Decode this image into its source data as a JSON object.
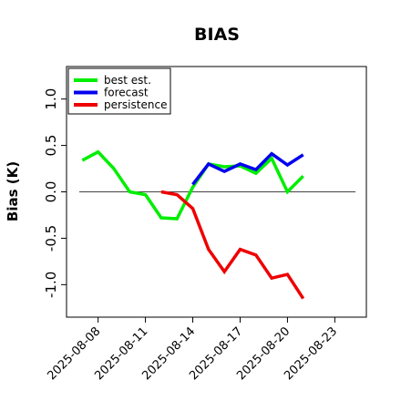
{
  "chart_data": {
    "type": "line",
    "title": "BIAS",
    "ylabel": "Bias (K)",
    "xlabel": "",
    "xlim": [
      "2025-08-06",
      "2025-08-25"
    ],
    "ylim": [
      -1.35,
      1.35
    ],
    "yticks": [
      -1.0,
      -0.5,
      0.0,
      0.5,
      1.0
    ],
    "ytick_labels": [
      "-1.0",
      "-0.5",
      "0.0",
      "0.5",
      "1.0"
    ],
    "xticks": [
      "2025-08-08",
      "2025-08-11",
      "2025-08-14",
      "2025-08-17",
      "2025-08-20",
      "2025-08-23"
    ],
    "xtick_labels": [
      "2025-08-08",
      "2025-08-11",
      "2025-08-14",
      "2025-08-17",
      "2025-08-20",
      "2025-08-23"
    ],
    "highlight_tick": "2025-08-14",
    "highlight_color": "#228B22",
    "reference_line": 0.0,
    "grid": false,
    "legend_position": "top-left",
    "series": [
      {
        "name": "best est.",
        "color": "#00ee00",
        "x": [
          "2025-08-07",
          "2025-08-08",
          "2025-08-09",
          "2025-08-10",
          "2025-08-11",
          "2025-08-12",
          "2025-08-13",
          "2025-08-14",
          "2025-08-15",
          "2025-08-16",
          "2025-08-17",
          "2025-08-18",
          "2025-08-19",
          "2025-08-20",
          "2025-08-21"
        ],
        "values": [
          0.34,
          0.43,
          0.25,
          0.0,
          -0.03,
          -0.28,
          -0.29,
          0.05,
          0.3,
          0.27,
          0.28,
          0.2,
          0.36,
          0.0,
          0.17
        ]
      },
      {
        "name": "forecast",
        "color": "#0000ee",
        "x": [
          "2025-08-14",
          "2025-08-15",
          "2025-08-16",
          "2025-08-17",
          "2025-08-18",
          "2025-08-19",
          "2025-08-20",
          "2025-08-21"
        ],
        "values": [
          0.08,
          0.3,
          0.22,
          0.3,
          0.24,
          0.41,
          0.29,
          0.4
        ]
      },
      {
        "name": "persistence",
        "color": "#ee0000",
        "x": [
          "2025-08-12",
          "2025-08-13",
          "2025-08-14",
          "2025-08-15",
          "2025-08-16",
          "2025-08-17",
          "2025-08-18",
          "2025-08-19",
          "2025-08-20",
          "2025-08-21"
        ],
        "values": [
          0.0,
          -0.03,
          -0.18,
          -0.62,
          -0.86,
          -0.62,
          -0.68,
          -0.93,
          -0.89,
          -1.15
        ]
      }
    ]
  }
}
